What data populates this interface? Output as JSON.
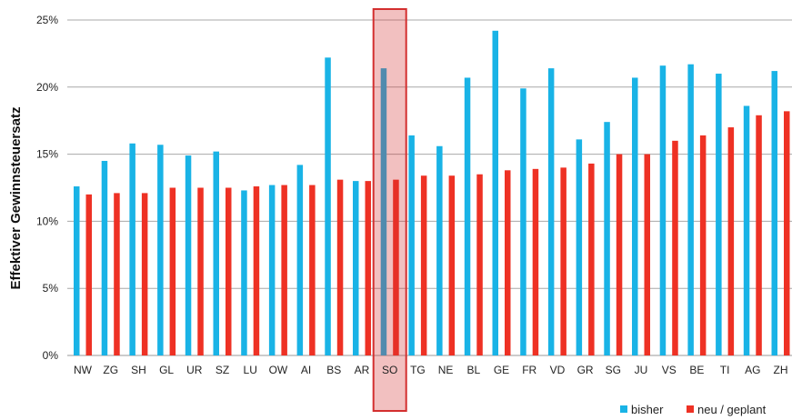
{
  "chart_data": {
    "type": "bar",
    "title": "",
    "xlabel": "",
    "ylabel": "Effektiver Gewinnsteuersatz",
    "ylim": [
      0,
      25
    ],
    "yticks": [
      "0%",
      "5%",
      "10%",
      "15%",
      "20%",
      "25%"
    ],
    "grid": true,
    "legend_position": "bottom-right",
    "categories": [
      "NW",
      "ZG",
      "SH",
      "GL",
      "UR",
      "SZ",
      "LU",
      "OW",
      "AI",
      "BS",
      "AR",
      "SO",
      "TG",
      "NE",
      "BL",
      "GE",
      "FR",
      "VD",
      "GR",
      "SG",
      "JU",
      "VS",
      "BE",
      "TI",
      "AG",
      "ZH"
    ],
    "series": [
      {
        "name": "bisher",
        "color": "#19b3e6",
        "values": [
          12.6,
          14.5,
          15.8,
          15.7,
          14.9,
          15.2,
          12.3,
          12.7,
          14.2,
          22.2,
          13.0,
          21.4,
          16.4,
          15.6,
          20.7,
          24.2,
          19.9,
          21.4,
          16.1,
          17.4,
          20.7,
          21.6,
          21.7,
          21.0,
          18.6,
          21.2
        ]
      },
      {
        "name": "neu / geplant",
        "color": "#ee3124",
        "values": [
          12.0,
          12.1,
          12.1,
          12.5,
          12.5,
          12.5,
          12.6,
          12.7,
          12.7,
          13.1,
          13.0,
          13.1,
          13.4,
          13.4,
          13.5,
          13.8,
          13.9,
          14.0,
          14.3,
          15.0,
          15.0,
          16.0,
          16.4,
          17.0,
          17.9,
          18.2
        ]
      }
    ],
    "highlight": {
      "category": "SO",
      "color": "#d32f2f"
    }
  }
}
